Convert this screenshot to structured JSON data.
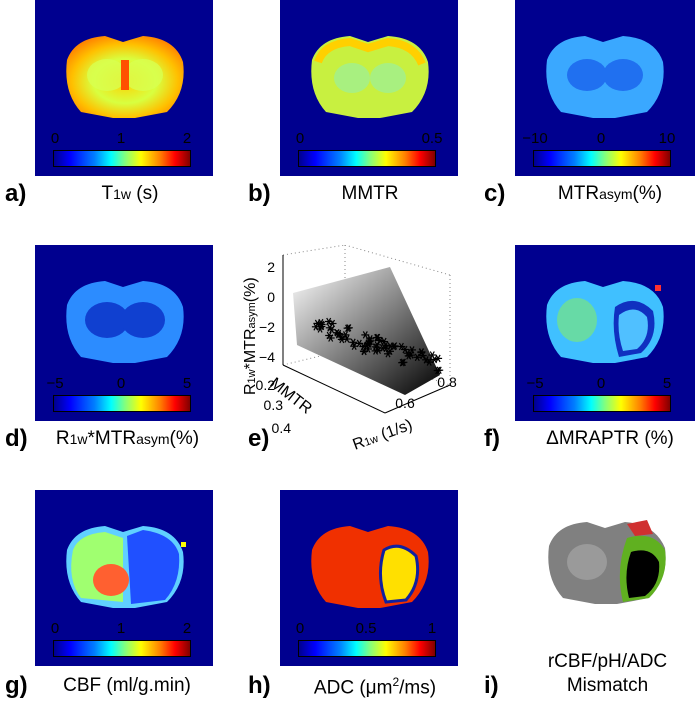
{
  "panels": {
    "a": {
      "letter": "a)",
      "quantity": "T",
      "sub": "1w",
      "unit": " (s)",
      "ticks": [
        "0",
        "1",
        "2"
      ]
    },
    "b": {
      "letter": "b)",
      "quantity": "MMTR",
      "ticks": [
        "0",
        "0.5"
      ]
    },
    "c": {
      "letter": "c)",
      "quantity": "MTR",
      "sub": "asym",
      "unit": "(%)",
      "ticks": [
        "−10",
        "0",
        "10"
      ]
    },
    "d": {
      "letter": "d)",
      "quantity": "R",
      "sub": "1w",
      "mid": "*MTR",
      "sub2": "asym",
      "unit": "(%)",
      "ticks": [
        "−5",
        "0",
        "5"
      ]
    },
    "e": {
      "letter": "e)",
      "zlabel_a": "R",
      "zlabel_sub": "1w",
      "zlabel_b": "*MTR",
      "zlabel_sub2": "asym",
      "zlabel_c": "(%)",
      "ylabel": "MMTR",
      "xlabel_a": "R",
      "xlabel_sub": "1w",
      "xlabel_b": " (1/s)",
      "zticks": [
        "2",
        "0",
        "−2",
        "−4"
      ],
      "yticks": [
        "0.2",
        "0.3",
        "0.4"
      ],
      "xticks": [
        "0.6",
        "0.8"
      ]
    },
    "f": {
      "letter": "f)",
      "quantity": "ΔMRAPTR (%)",
      "ticks": [
        "−5",
        "0",
        "5"
      ]
    },
    "g": {
      "letter": "g)",
      "quantity": "CBF (ml/g.min)",
      "ticks": [
        "0",
        "1",
        "2"
      ]
    },
    "h": {
      "letter": "h)",
      "quantity_a": "ADC (",
      "quantity_mu": "μm",
      "quantity_sup": "2",
      "quantity_b": "/ms)",
      "ticks": [
        "0",
        "0.5",
        "1"
      ]
    },
    "i": {
      "letter": "i)",
      "line1": "rCBF/pH/ADC",
      "line2": "Mismatch"
    }
  },
  "colors": {
    "background": "#00008f",
    "colormap": "jet"
  }
}
